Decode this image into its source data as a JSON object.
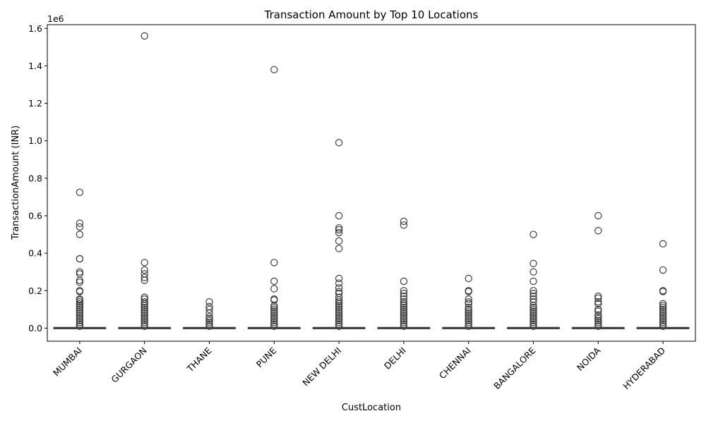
{
  "chart_data": {
    "type": "box",
    "title": "Transaction Amount by Top 10 Locations",
    "xlabel": "CustLocation",
    "ylabel": "TransactionAmount (INR)",
    "y_offset_label": "1e6",
    "ylim": [
      -0.07,
      1.62
    ],
    "yticks": [
      0.0,
      0.2,
      0.4,
      0.6,
      0.8,
      1.0,
      1.2,
      1.4,
      1.6
    ],
    "ytick_labels": [
      "0.0",
      "0.2",
      "0.4",
      "0.6",
      "0.8",
      "1.0",
      "1.2",
      "1.4",
      "1.6"
    ],
    "grid": false,
    "categories": [
      "MUMBAI",
      "GURGAON",
      "THANE",
      "PUNE",
      "NEW DELHI",
      "DELHI",
      "CHENNAI",
      "BANGALORE",
      "NOIDA",
      "HYDERABAD"
    ],
    "boxes": [
      {
        "name": "MUMBAI",
        "q1": 0.0,
        "median": 0.001,
        "q3": 0.002,
        "whisker_low": 0.0,
        "whisker_high": 0.004,
        "outliers": [
          0.725,
          0.56,
          0.54,
          0.5,
          0.37,
          0.37,
          0.3,
          0.29,
          0.255,
          0.245,
          0.2,
          0.195,
          0.155,
          0.15,
          0.14,
          0.13,
          0.12,
          0.11,
          0.1,
          0.09,
          0.08,
          0.07,
          0.06,
          0.05,
          0.04,
          0.03,
          0.02,
          0.01
        ]
      },
      {
        "name": "GURGAON",
        "q1": 0.0,
        "median": 0.001,
        "q3": 0.002,
        "whisker_low": 0.0,
        "whisker_high": 0.004,
        "outliers": [
          1.56,
          0.35,
          0.31,
          0.29,
          0.27,
          0.255,
          0.165,
          0.155,
          0.14,
          0.13,
          0.12,
          0.11,
          0.1,
          0.09,
          0.08,
          0.07,
          0.06,
          0.05,
          0.04,
          0.03,
          0.02,
          0.01
        ]
      },
      {
        "name": "THANE",
        "q1": 0.0,
        "median": 0.001,
        "q3": 0.002,
        "whisker_low": 0.0,
        "whisker_high": 0.004,
        "outliers": [
          0.14,
          0.115,
          0.1,
          0.08,
          0.06,
          0.05,
          0.04,
          0.03,
          0.02,
          0.01
        ]
      },
      {
        "name": "PUNE",
        "q1": 0.0,
        "median": 0.001,
        "q3": 0.002,
        "whisker_low": 0.0,
        "whisker_high": 0.004,
        "outliers": [
          1.38,
          0.35,
          0.25,
          0.21,
          0.155,
          0.15,
          0.12,
          0.11,
          0.1,
          0.09,
          0.08,
          0.07,
          0.06,
          0.05,
          0.04,
          0.03,
          0.02,
          0.01
        ]
      },
      {
        "name": "NEW DELHI",
        "q1": 0.0,
        "median": 0.001,
        "q3": 0.002,
        "whisker_low": 0.0,
        "whisker_high": 0.004,
        "outliers": [
          0.99,
          0.6,
          0.535,
          0.525,
          0.51,
          0.465,
          0.425,
          0.265,
          0.24,
          0.215,
          0.195,
          0.185,
          0.165,
          0.15,
          0.14,
          0.13,
          0.12,
          0.11,
          0.1,
          0.09,
          0.08,
          0.07,
          0.06,
          0.05,
          0.04,
          0.03,
          0.02,
          0.01
        ]
      },
      {
        "name": "DELHI",
        "q1": 0.0,
        "median": 0.001,
        "q3": 0.002,
        "whisker_low": 0.0,
        "whisker_high": 0.004,
        "outliers": [
          0.57,
          0.55,
          0.25,
          0.2,
          0.185,
          0.17,
          0.155,
          0.14,
          0.13,
          0.12,
          0.11,
          0.1,
          0.09,
          0.08,
          0.07,
          0.06,
          0.05,
          0.04,
          0.03,
          0.02,
          0.01
        ]
      },
      {
        "name": "CHENNAI",
        "q1": 0.0,
        "median": 0.001,
        "q3": 0.002,
        "whisker_low": 0.0,
        "whisker_high": 0.004,
        "outliers": [
          0.265,
          0.2,
          0.195,
          0.155,
          0.14,
          0.13,
          0.11,
          0.1,
          0.09,
          0.08,
          0.07,
          0.06,
          0.05,
          0.04,
          0.03,
          0.02,
          0.01
        ]
      },
      {
        "name": "BANGALORE",
        "q1": 0.0,
        "median": 0.001,
        "q3": 0.002,
        "whisker_low": 0.0,
        "whisker_high": 0.004,
        "outliers": [
          0.5,
          0.345,
          0.3,
          0.25,
          0.2,
          0.185,
          0.17,
          0.155,
          0.14,
          0.12,
          0.11,
          0.1,
          0.09,
          0.08,
          0.07,
          0.06,
          0.05,
          0.04,
          0.03,
          0.02,
          0.01
        ]
      },
      {
        "name": "NOIDA",
        "q1": 0.0,
        "median": 0.001,
        "q3": 0.002,
        "whisker_low": 0.0,
        "whisker_high": 0.004,
        "outliers": [
          0.6,
          0.52,
          0.17,
          0.16,
          0.14,
          0.13,
          0.1,
          0.09,
          0.07,
          0.06,
          0.05,
          0.04,
          0.03,
          0.02,
          0.01
        ]
      },
      {
        "name": "HYDERABAD",
        "q1": 0.0,
        "median": 0.001,
        "q3": 0.002,
        "whisker_low": 0.0,
        "whisker_high": 0.004,
        "outliers": [
          0.45,
          0.31,
          0.2,
          0.195,
          0.13,
          0.12,
          0.11,
          0.1,
          0.09,
          0.08,
          0.07,
          0.06,
          0.05,
          0.04,
          0.03,
          0.02,
          0.01
        ]
      }
    ]
  }
}
